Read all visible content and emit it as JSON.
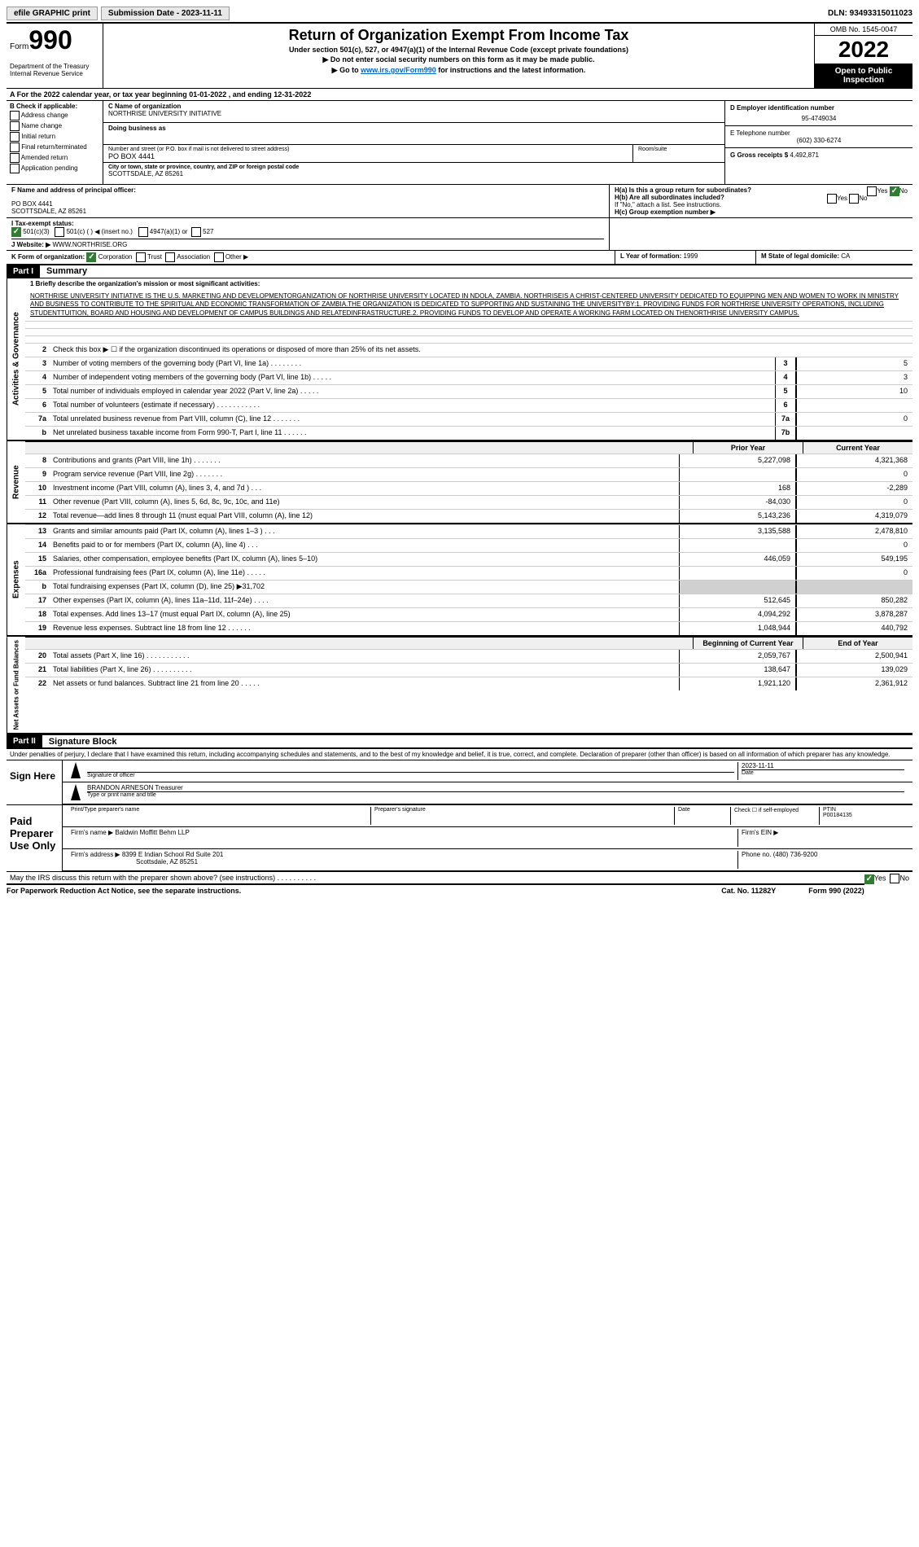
{
  "topbar": {
    "efile": "efile GRAPHIC print",
    "submission": "Submission Date - 2023-11-11",
    "dln": "DLN: 93493315011023"
  },
  "header": {
    "form_word": "Form",
    "form_num": "990",
    "dept": "Department of the Treasury Internal Revenue Service",
    "title": "Return of Organization Exempt From Income Tax",
    "sub": "Under section 501(c), 527, or 4947(a)(1) of the Internal Revenue Code (except private foundations)",
    "line1": "▶ Do not enter social security numbers on this form as it may be made public.",
    "line2_pre": "▶ Go to ",
    "line2_link": "www.irs.gov/Form990",
    "line2_post": " for instructions and the latest information.",
    "omb": "OMB No. 1545-0047",
    "year": "2022",
    "inspection": "Open to Public Inspection"
  },
  "row_a": "A For the 2022 calendar year, or tax year beginning 01-01-2022   , and ending 12-31-2022",
  "col_b": {
    "title": "B Check if applicable:",
    "items": [
      "Address change",
      "Name change",
      "Initial return",
      "Final return/terminated",
      "Amended return",
      "Application pending"
    ]
  },
  "col_c": {
    "name_label": "C Name of organization",
    "name": "NORTHRISE UNIVERSITY INITIATIVE",
    "dba_label": "Doing business as",
    "dba": "",
    "addr_label": "Number and street (or P.O. box if mail is not delivered to street address)",
    "addr": "PO BOX 4441",
    "room_label": "Room/suite",
    "city_label": "City or town, state or province, country, and ZIP or foreign postal code",
    "city": "SCOTTSDALE, AZ  85261"
  },
  "col_d": {
    "label": "D Employer identification number",
    "val": "95-4749034"
  },
  "col_e": {
    "label": "E Telephone number",
    "val": "(602) 330-6274"
  },
  "col_g": {
    "label": "G Gross receipts $",
    "val": "4,492,871"
  },
  "row_f": {
    "label": "F  Name and address of principal officer:",
    "line1": "PO BOX 4441",
    "line2": "SCOTTSDALE, AZ  85261"
  },
  "row_h": {
    "ha": "H(a)  Is this a group return for subordinates?",
    "hb": "H(b)  Are all subordinates included?",
    "hb_note": "If \"No,\" attach a list. See instructions.",
    "hc": "H(c)  Group exemption number ▶"
  },
  "row_i": {
    "label": "I  Tax-exempt status:",
    "c3": "501(c)(3)",
    "c": "501(c) (  ) ◀ (insert no.)",
    "a1": "4947(a)(1) or",
    "527": "527"
  },
  "row_j": {
    "label": "J  Website: ▶ ",
    "val": "WWW.NORTHRISE.ORG"
  },
  "row_k": {
    "label": "K Form of organization:",
    "corp": "Corporation",
    "trust": "Trust",
    "assoc": "Association",
    "other": "Other ▶"
  },
  "row_l": {
    "label": "L Year of formation: ",
    "val": "1999"
  },
  "row_m": {
    "label": "M State of legal domicile: ",
    "val": "CA"
  },
  "part1": {
    "header": "Part I",
    "title": "Summary"
  },
  "mission_label": "1    Briefly describe the organization's mission or most significant activities:",
  "mission": "NORTHRISE UNIVERSITY INITIATIVE IS THE U.S. MARKETING AND DEVELOPMENTORGANIZATION OF NORTHRISE UNIVERSITY LOCATED IN NDOLA, ZAMBIA. NORTHRISEIS A CHRIST-CENTERED UNIVERSITY DEDICATED TO EQUIPPING MEN AND WOMEN TO WORK IN MINISTRY AND BUSINESS TO CONTRIBUTE TO THE SPIRITUAL AND ECONOMIC TRANSFORMATION OF ZAMBIA.THE ORGANIZATION IS DEDICATED TO SUPPORTING AND SUSTAINING THE UNIVERSITYBY:1. PROVIDING FUNDS FOR NORTHRISE UNIVERSITY OPERATIONS, INCLUDING STUDENTTUITION, BOARD AND HOUSING AND DEVELOPMENT OF CAMPUS BUILDINGS AND RELATEDINFRASTRUCTURE.2. PROVIDING FUNDS TO DEVELOP AND OPERATE A WORKING FARM LOCATED ON THENORTHRISE UNIVERSITY CAMPUS.",
  "gov_lines": [
    {
      "n": "2",
      "d": "Check this box ▶ ☐ if the organization discontinued its operations or disposed of more than 25% of its net assets."
    },
    {
      "n": "3",
      "d": "Number of voting members of the governing body (Part VI, line 1a)  .   .   .   .   .   .   .   .",
      "box": "3",
      "v": "5"
    },
    {
      "n": "4",
      "d": "Number of independent voting members of the governing body (Part VI, line 1b)  .   .   .   .   .",
      "box": "4",
      "v": "3"
    },
    {
      "n": "5",
      "d": "Total number of individuals employed in calendar year 2022 (Part V, line 2a)  .   .   .   .   .",
      "box": "5",
      "v": "10"
    },
    {
      "n": "6",
      "d": "Total number of volunteers (estimate if necessary)  .   .   .   .   .   .   .   .   .   .   .",
      "box": "6",
      "v": ""
    },
    {
      "n": "7a",
      "d": "Total unrelated business revenue from Part VIII, column (C), line 12  .   .   .   .   .   .   .",
      "box": "7a",
      "v": "0"
    },
    {
      "n": "b",
      "d": "Net unrelated business taxable income from Form 990-T, Part I, line 11  .   .   .   .   .   .",
      "box": "7b",
      "v": ""
    }
  ],
  "col_headers": {
    "prior": "Prior Year",
    "current": "Current Year"
  },
  "rev_lines": [
    {
      "n": "8",
      "d": "Contributions and grants (Part VIII, line 1h)   .   .   .   .   .   .   .",
      "p": "5,227,098",
      "c": "4,321,368"
    },
    {
      "n": "9",
      "d": "Program service revenue (Part VIII, line 2g)   .   .   .   .   .   .   .",
      "p": "",
      "c": "0"
    },
    {
      "n": "10",
      "d": "Investment income (Part VIII, column (A), lines 3, 4, and 7d )   .   .   .",
      "p": "168",
      "c": "-2,289"
    },
    {
      "n": "11",
      "d": "Other revenue (Part VIII, column (A), lines 5, 6d, 8c, 9c, 10c, and 11e)",
      "p": "-84,030",
      "c": "0"
    },
    {
      "n": "12",
      "d": "Total revenue—add lines 8 through 11 (must equal Part VIII, column (A), line 12)",
      "p": "5,143,236",
      "c": "4,319,079"
    }
  ],
  "exp_lines": [
    {
      "n": "13",
      "d": "Grants and similar amounts paid (Part IX, column (A), lines 1–3 )   .   .   .",
      "p": "3,135,588",
      "c": "2,478,810"
    },
    {
      "n": "14",
      "d": "Benefits paid to or for members (Part IX, column (A), line 4)   .   .   .",
      "p": "",
      "c": "0"
    },
    {
      "n": "15",
      "d": "Salaries, other compensation, employee benefits (Part IX, column (A), lines 5–10)",
      "p": "446,059",
      "c": "549,195"
    },
    {
      "n": "16a",
      "d": "Professional fundraising fees (Part IX, column (A), line 11e)   .   .   .   .   .",
      "p": "",
      "c": "0"
    },
    {
      "n": "b",
      "d": "Total fundraising expenses (Part IX, column (D), line 25) ▶31,702",
      "p": "grey",
      "c": "grey"
    },
    {
      "n": "17",
      "d": "Other expenses (Part IX, column (A), lines 11a–11d, 11f–24e)   .   .   .   .",
      "p": "512,645",
      "c": "850,282"
    },
    {
      "n": "18",
      "d": "Total expenses. Add lines 13–17 (must equal Part IX, column (A), line 25)",
      "p": "4,094,292",
      "c": "3,878,287"
    },
    {
      "n": "19",
      "d": "Revenue less expenses. Subtract line 18 from line 12  .   .   .   .   .   .",
      "p": "1,048,944",
      "c": "440,792"
    }
  ],
  "bal_headers": {
    "begin": "Beginning of Current Year",
    "end": "End of Year"
  },
  "bal_lines": [
    {
      "n": "20",
      "d": "Total assets (Part X, line 16)  .   .   .   .   .   .   .   .   .   .   .",
      "p": "2,059,767",
      "c": "2,500,941"
    },
    {
      "n": "21",
      "d": "Total liabilities (Part X, line 26)  .   .   .   .   .   .   .   .   .   .",
      "p": "138,647",
      "c": "139,029"
    },
    {
      "n": "22",
      "d": "Net assets or fund balances. Subtract line 21 from line 20  .   .   .   .   .",
      "p": "1,921,120",
      "c": "2,361,912"
    }
  ],
  "part2": {
    "header": "Part II",
    "title": "Signature Block"
  },
  "penalty": "Under penalties of perjury, I declare that I have examined this return, including accompanying schedules and statements, and to the best of my knowledge and belief, it is true, correct, and complete. Declaration of preparer (other than officer) is based on all information of which preparer has any knowledge.",
  "sign": {
    "here": "Sign Here",
    "sig_label": "Signature of officer",
    "date_label": "Date",
    "date": "2023-11-11",
    "name": "BRANDON ARNESON Treasurer",
    "name_label": "Type or print name and title"
  },
  "preparer": {
    "here": "Paid Preparer Use Only",
    "col1": "Print/Type preparer's name",
    "col2": "Preparer's signature",
    "col3": "Date",
    "col4": "Check ☐ if self-employed",
    "ptin_label": "PTIN",
    "ptin": "P00184135",
    "firm_label": "Firm's name    ▶",
    "firm": "Baldwin Moffitt Behm LLP",
    "ein_label": "Firm's EIN ▶",
    "addr_label": "Firm's address ▶",
    "addr1": "8399 E Indian School Rd Suite 201",
    "addr2": "Scottsdale, AZ  85251",
    "phone_label": "Phone no.",
    "phone": "(480) 736-9200"
  },
  "discuss": "May the IRS discuss this return with the preparer shown above? (see instructions)  .   .   .   .   .   .   .   .   .   .",
  "footer": {
    "left": "For Paperwork Reduction Act Notice, see the separate instructions.",
    "mid": "Cat. No. 11282Y",
    "right": "Form 990 (2022)"
  },
  "vtabs": {
    "gov": "Activities & Governance",
    "rev": "Revenue",
    "exp": "Expenses",
    "bal": "Net Assets or Fund Balances"
  }
}
